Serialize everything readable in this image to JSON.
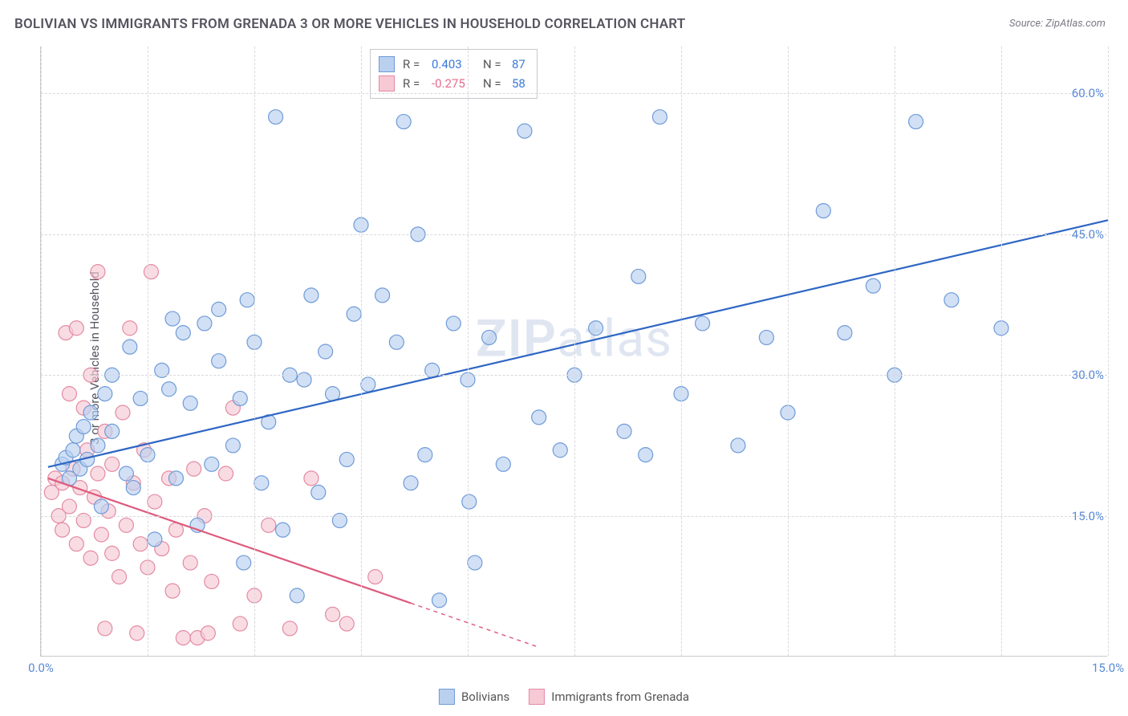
{
  "title": "BOLIVIAN VS IMMIGRANTS FROM GRENADA 3 OR MORE VEHICLES IN HOUSEHOLD CORRELATION CHART",
  "source": "Source: ZipAtlas.com",
  "y_axis_title": "3 or more Vehicles in Household",
  "watermark": "ZIPatlas",
  "chart": {
    "type": "scatter-correlation",
    "xlim": [
      0,
      15
    ],
    "ylim": [
      0,
      65
    ],
    "x_ticks": [
      {
        "v": 0,
        "label": "0.0%"
      },
      {
        "v": 15,
        "label": "15.0%"
      }
    ],
    "y_ticks": [
      {
        "v": 15,
        "label": "15.0%"
      },
      {
        "v": 30,
        "label": "30.0%"
      },
      {
        "v": 45,
        "label": "45.0%"
      },
      {
        "v": 60,
        "label": "60.0%"
      }
    ],
    "h_gridlines": [
      15,
      30,
      45,
      60
    ],
    "v_gridlines": [
      0,
      1.5,
      3,
      4.5,
      6,
      7.5,
      9,
      10.5,
      12,
      13.5,
      15
    ],
    "background_color": "#ffffff",
    "grid_color": "#d8d8de",
    "axis_color": "#c9c9ce",
    "tick_color": "#5a8ad6",
    "marker_radius": 9,
    "marker_stroke_width": 1.2,
    "line_width": 2.2
  },
  "series": {
    "bolivians": {
      "label": "Bolivians",
      "fill": "#b9d0ef",
      "stroke": "#6f9bd8",
      "line_color": "#2e66c4",
      "R": "0.403",
      "N": "87",
      "trend": {
        "x1": 0.1,
        "y1": 20.2,
        "x2": 15,
        "y2": 46.5,
        "solid_until_x": 15
      },
      "points": [
        [
          0.3,
          20.5
        ],
        [
          0.35,
          21.2
        ],
        [
          0.4,
          19.0
        ],
        [
          0.45,
          22.0
        ],
        [
          0.5,
          23.5
        ],
        [
          0.55,
          20.0
        ],
        [
          0.6,
          24.5
        ],
        [
          0.65,
          21.0
        ],
        [
          0.7,
          26.0
        ],
        [
          0.8,
          22.5
        ],
        [
          0.85,
          16.0
        ],
        [
          0.9,
          28.0
        ],
        [
          1.0,
          24.0
        ],
        [
          1.0,
          30.0
        ],
        [
          1.2,
          19.5
        ],
        [
          1.25,
          33.0
        ],
        [
          1.3,
          18.0
        ],
        [
          1.4,
          27.5
        ],
        [
          1.5,
          21.5
        ],
        [
          1.6,
          12.5
        ],
        [
          1.7,
          30.5
        ],
        [
          1.8,
          28.5
        ],
        [
          1.85,
          36.0
        ],
        [
          1.9,
          19.0
        ],
        [
          2.0,
          34.5
        ],
        [
          2.1,
          27.0
        ],
        [
          2.2,
          14.0
        ],
        [
          2.3,
          35.5
        ],
        [
          2.4,
          20.5
        ],
        [
          2.5,
          31.5
        ],
        [
          2.5,
          37.0
        ],
        [
          2.7,
          22.5
        ],
        [
          2.8,
          27.5
        ],
        [
          2.85,
          10.0
        ],
        [
          2.9,
          38.0
        ],
        [
          3.0,
          33.5
        ],
        [
          3.1,
          18.5
        ],
        [
          3.2,
          25.0
        ],
        [
          3.3,
          57.5
        ],
        [
          3.4,
          13.5
        ],
        [
          3.5,
          30.0
        ],
        [
          3.6,
          6.5
        ],
        [
          3.7,
          29.5
        ],
        [
          3.8,
          38.5
        ],
        [
          3.9,
          17.5
        ],
        [
          4.0,
          32.5
        ],
        [
          4.1,
          28.0
        ],
        [
          4.2,
          14.5
        ],
        [
          4.3,
          21.0
        ],
        [
          4.4,
          36.5
        ],
        [
          4.5,
          46.0
        ],
        [
          4.6,
          29.0
        ],
        [
          4.8,
          38.5
        ],
        [
          5.0,
          33.5
        ],
        [
          5.1,
          57.0
        ],
        [
          5.2,
          18.5
        ],
        [
          5.3,
          45.0
        ],
        [
          5.4,
          21.5
        ],
        [
          5.5,
          30.5
        ],
        [
          5.6,
          6.0
        ],
        [
          5.8,
          35.5
        ],
        [
          6.0,
          29.5
        ],
        [
          6.02,
          16.5
        ],
        [
          6.1,
          10.0
        ],
        [
          6.3,
          34.0
        ],
        [
          6.5,
          20.5
        ],
        [
          6.8,
          56.0
        ],
        [
          7.0,
          25.5
        ],
        [
          7.3,
          22.0
        ],
        [
          7.5,
          30.0
        ],
        [
          7.8,
          35.0
        ],
        [
          8.2,
          24.0
        ],
        [
          8.4,
          40.5
        ],
        [
          8.5,
          21.5
        ],
        [
          8.7,
          57.5
        ],
        [
          9.0,
          28.0
        ],
        [
          9.3,
          35.5
        ],
        [
          9.8,
          22.5
        ],
        [
          10.2,
          34.0
        ],
        [
          10.5,
          26.0
        ],
        [
          11.0,
          47.5
        ],
        [
          11.3,
          34.5
        ],
        [
          11.7,
          39.5
        ],
        [
          12.0,
          30.0
        ],
        [
          12.3,
          57.0
        ],
        [
          12.8,
          38.0
        ],
        [
          13.5,
          35.0
        ]
      ]
    },
    "grenada": {
      "label": "Immigrants from Grenada",
      "fill": "#f6c9d4",
      "stroke": "#e48aa3",
      "line_color": "#dd5b7e",
      "R": "-0.275",
      "N": "58",
      "trend": {
        "x1": 0.1,
        "y1": 19.0,
        "x2": 7.0,
        "y2": 1.0,
        "solid_until_x": 5.2
      },
      "points": [
        [
          0.15,
          17.5
        ],
        [
          0.2,
          19.0
        ],
        [
          0.25,
          15.0
        ],
        [
          0.3,
          18.5
        ],
        [
          0.3,
          13.5
        ],
        [
          0.35,
          34.5
        ],
        [
          0.4,
          16.0
        ],
        [
          0.4,
          28.0
        ],
        [
          0.45,
          20.0
        ],
        [
          0.5,
          12.0
        ],
        [
          0.5,
          35.0
        ],
        [
          0.55,
          18.0
        ],
        [
          0.6,
          26.5
        ],
        [
          0.6,
          14.5
        ],
        [
          0.65,
          22.0
        ],
        [
          0.7,
          10.5
        ],
        [
          0.7,
          30.0
        ],
        [
          0.75,
          17.0
        ],
        [
          0.8,
          41.0
        ],
        [
          0.8,
          19.5
        ],
        [
          0.85,
          13.0
        ],
        [
          0.9,
          24.0
        ],
        [
          0.9,
          3.0
        ],
        [
          0.95,
          15.5
        ],
        [
          1.0,
          11.0
        ],
        [
          1.0,
          20.5
        ],
        [
          1.1,
          8.5
        ],
        [
          1.15,
          26.0
        ],
        [
          1.2,
          14.0
        ],
        [
          1.25,
          35.0
        ],
        [
          1.3,
          18.5
        ],
        [
          1.35,
          2.5
        ],
        [
          1.4,
          12.0
        ],
        [
          1.45,
          22.0
        ],
        [
          1.5,
          9.5
        ],
        [
          1.55,
          41.0
        ],
        [
          1.6,
          16.5
        ],
        [
          1.7,
          11.5
        ],
        [
          1.8,
          19.0
        ],
        [
          1.85,
          7.0
        ],
        [
          1.9,
          13.5
        ],
        [
          2.0,
          2.0
        ],
        [
          2.1,
          10.0
        ],
        [
          2.15,
          20.0
        ],
        [
          2.2,
          2.0
        ],
        [
          2.3,
          15.0
        ],
        [
          2.35,
          2.5
        ],
        [
          2.4,
          8.0
        ],
        [
          2.6,
          19.5
        ],
        [
          2.7,
          26.5
        ],
        [
          2.8,
          3.5
        ],
        [
          3.0,
          6.5
        ],
        [
          3.2,
          14.0
        ],
        [
          3.5,
          3.0
        ],
        [
          3.8,
          19.0
        ],
        [
          4.1,
          4.5
        ],
        [
          4.3,
          3.5
        ],
        [
          4.7,
          8.5
        ]
      ]
    }
  },
  "stats_legend": {
    "rows": [
      {
        "swatch_series": "bolivians",
        "r_label": "R =",
        "r_val": "0.403",
        "n_label": "N =",
        "n_val": "87",
        "r_class": "blue"
      },
      {
        "swatch_series": "grenada",
        "r_label": "R =",
        "r_val": "-0.275",
        "n_label": "N =",
        "n_val": "58",
        "r_class": "pink"
      }
    ]
  },
  "bottom_legend": [
    {
      "series": "bolivians"
    },
    {
      "series": "grenada"
    }
  ]
}
